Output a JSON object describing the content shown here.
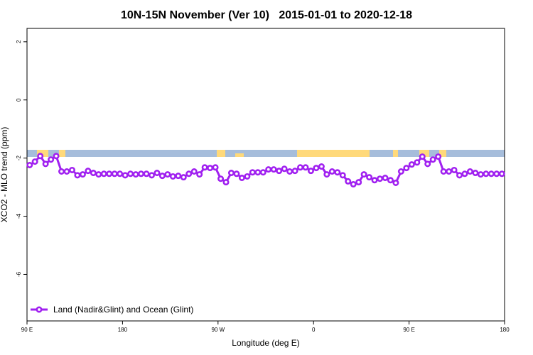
{
  "chart_data": {
    "type": "line",
    "title": "10N-15N November (Ver 10)   2015-01-01 to 2020-12-18",
    "x_label": "Longitude (deg E)",
    "y_label": "XCO2 - MLO trend (ppm)",
    "xlim": [
      90,
      540
    ],
    "xticks": [
      {
        "value": 90,
        "label": "90 E"
      },
      {
        "value": 180,
        "label": "180"
      },
      {
        "value": 270,
        "label": "90 W"
      },
      {
        "value": 360,
        "label": "0"
      },
      {
        "value": 450,
        "label": "90 E"
      },
      {
        "value": 540,
        "label": "180"
      }
    ],
    "ylim": [
      -7.6,
      2.46
    ],
    "yticks": [
      2,
      0,
      -2,
      -4,
      -6
    ],
    "legend_position": "bottom-left",
    "x": [
      92.5,
      97.5,
      102.5,
      107.5,
      112.5,
      117.5,
      122.5,
      127.5,
      132.5,
      137.5,
      142.5,
      147.5,
      152.5,
      157.5,
      162.5,
      167.5,
      172.5,
      177.5,
      182.5,
      187.5,
      192.5,
      197.5,
      202.5,
      207.5,
      212.5,
      217.5,
      222.5,
      227.5,
      232.5,
      237.5,
      242.5,
      247.5,
      252.5,
      257.5,
      262.5,
      267.5,
      272.5,
      277.5,
      282.5,
      287.5,
      292.5,
      297.5,
      302.5,
      307.5,
      312.5,
      317.5,
      322.5,
      327.5,
      332.5,
      337.5,
      342.5,
      347.5,
      352.5,
      357.5,
      362.5,
      367.5,
      372.5,
      377.5,
      382.5,
      387.5,
      392.5,
      397.5,
      402.5,
      407.5,
      412.5,
      417.5,
      422.5,
      427.5,
      432.5,
      437.5,
      442.5,
      447.5,
      452.5,
      457.5,
      462.5,
      467.5,
      472.5,
      477.5,
      482.5,
      487.5,
      492.5,
      497.5,
      502.5,
      507.5,
      512.5,
      517.5,
      522.5,
      527.5,
      532.5,
      537.5
    ],
    "series": [
      {
        "name": "Land (Nadir&Glint) and Ocean (Glint)",
        "color": "#a020f0",
        "values": [
          -2.24,
          -2.12,
          -1.93,
          -2.2,
          -2.05,
          -1.93,
          -2.46,
          -2.46,
          -2.41,
          -2.59,
          -2.56,
          -2.44,
          -2.51,
          -2.56,
          -2.54,
          -2.54,
          -2.54,
          -2.54,
          -2.59,
          -2.54,
          -2.56,
          -2.54,
          -2.54,
          -2.59,
          -2.51,
          -2.61,
          -2.56,
          -2.63,
          -2.61,
          -2.66,
          -2.54,
          -2.46,
          -2.56,
          -2.32,
          -2.34,
          -2.32,
          -2.71,
          -2.83,
          -2.51,
          -2.54,
          -2.68,
          -2.63,
          -2.49,
          -2.49,
          -2.49,
          -2.39,
          -2.39,
          -2.44,
          -2.37,
          -2.46,
          -2.44,
          -2.32,
          -2.32,
          -2.44,
          -2.34,
          -2.29,
          -2.56,
          -2.46,
          -2.49,
          -2.59,
          -2.8,
          -2.9,
          -2.83,
          -2.56,
          -2.66,
          -2.76,
          -2.71,
          -2.68,
          -2.76,
          -2.85,
          -2.46,
          -2.34,
          -2.22,
          -2.15,
          -1.95,
          -2.2,
          -2.05,
          -1.95,
          -2.46,
          -2.46,
          -2.41,
          -2.59,
          -2.54,
          -2.46,
          -2.51,
          -2.56,
          -2.54,
          -2.54,
          -2.54,
          -2.54
        ]
      }
    ]
  }
}
